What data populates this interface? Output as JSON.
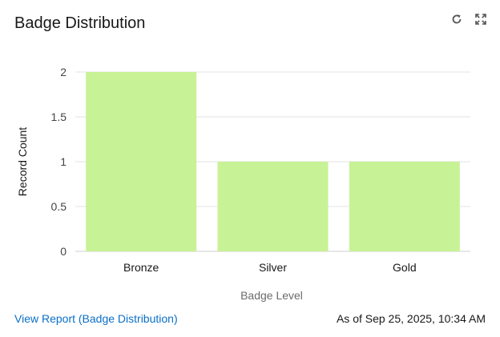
{
  "header": {
    "title": "Badge Distribution",
    "refresh_icon": "refresh-icon",
    "expand_icon": "expand-icon"
  },
  "chart_data": {
    "type": "bar",
    "title": "",
    "categories": [
      "Bronze",
      "Silver",
      "Gold"
    ],
    "values": [
      2,
      1,
      1
    ],
    "xlabel": "Badge Level",
    "ylabel": "Record Count",
    "ylim": [
      0,
      2
    ],
    "yticks": [
      0,
      0.5,
      1,
      1.5,
      2
    ],
    "ytick_labels": [
      "0",
      "0.5",
      "1",
      "1.5",
      "2"
    ],
    "grid": true,
    "bar_color": "#c8f296"
  },
  "footer": {
    "report_link": "View Report (Badge Distribution)",
    "timestamp": "As of Sep 25, 2025, 10:34 AM"
  }
}
